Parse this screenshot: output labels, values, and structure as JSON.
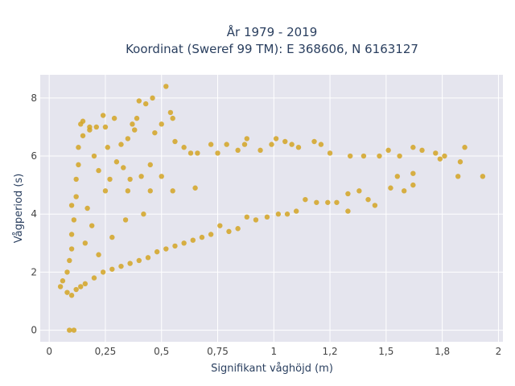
{
  "chart_data": {
    "type": "scatter",
    "title": "År 1979 - 2019",
    "subtitle": "Koordinat (Sweref 99 TM): E 368606, N 6163127",
    "xlabel": "Signifikant våghöjd (m)",
    "ylabel": "Vågperiod (s)",
    "xlim": [
      -0.04,
      2.02
    ],
    "ylim": [
      -0.4,
      8.8
    ],
    "x_ticks": [
      0,
      0.25,
      0.5,
      0.75,
      1,
      1.25,
      1.5,
      1.75,
      2
    ],
    "x_tick_labels": [
      "0",
      "0,25",
      "0,5",
      "0,75",
      "1",
      "1,2",
      "1,5",
      "1,8",
      "2"
    ],
    "y_ticks": [
      0,
      2,
      4,
      6,
      8
    ],
    "y_tick_labels": [
      "0",
      "2",
      "4",
      "6",
      "8"
    ],
    "grid": true,
    "legend": "none",
    "marker_color": "#d4a423",
    "plot_background": "#e5e5ee",
    "series": [
      {
        "points": [
          [
            0.09,
            0.0
          ],
          [
            0.11,
            0.0
          ],
          [
            0.05,
            1.5
          ],
          [
            0.06,
            1.7
          ],
          [
            0.08,
            1.3
          ],
          [
            0.1,
            1.2
          ],
          [
            0.12,
            1.4
          ],
          [
            0.08,
            2.0
          ],
          [
            0.09,
            2.4
          ],
          [
            0.1,
            2.8
          ],
          [
            0.1,
            3.3
          ],
          [
            0.11,
            3.8
          ],
          [
            0.1,
            4.3
          ],
          [
            0.12,
            4.6
          ],
          [
            0.12,
            5.2
          ],
          [
            0.13,
            5.7
          ],
          [
            0.13,
            6.3
          ],
          [
            0.15,
            6.7
          ],
          [
            0.15,
            7.2
          ],
          [
            0.14,
            7.1
          ],
          [
            0.18,
            6.9
          ],
          [
            0.18,
            7.0
          ],
          [
            0.21,
            7.0
          ],
          [
            0.24,
            7.4
          ],
          [
            0.25,
            7.0
          ],
          [
            0.29,
            7.3
          ],
          [
            0.37,
            7.1
          ],
          [
            0.35,
            6.6
          ],
          [
            0.38,
            6.9
          ],
          [
            0.39,
            7.3
          ],
          [
            0.4,
            7.9
          ],
          [
            0.43,
            7.8
          ],
          [
            0.46,
            8.0
          ],
          [
            0.52,
            8.4
          ],
          [
            0.5,
            7.1
          ],
          [
            0.55,
            7.3
          ],
          [
            0.54,
            7.5
          ],
          [
            0.47,
            6.8
          ],
          [
            0.56,
            6.5
          ],
          [
            0.6,
            6.3
          ],
          [
            0.63,
            6.1
          ],
          [
            0.66,
            6.1
          ],
          [
            0.72,
            6.4
          ],
          [
            0.75,
            6.1
          ],
          [
            0.79,
            6.4
          ],
          [
            0.84,
            6.2
          ],
          [
            0.87,
            6.4
          ],
          [
            0.88,
            6.6
          ],
          [
            0.94,
            6.2
          ],
          [
            0.99,
            6.4
          ],
          [
            1.01,
            6.6
          ],
          [
            1.05,
            6.5
          ],
          [
            1.08,
            6.4
          ],
          [
            1.11,
            6.3
          ],
          [
            1.18,
            6.5
          ],
          [
            1.21,
            6.4
          ],
          [
            1.25,
            6.1
          ],
          [
            1.34,
            6.0
          ],
          [
            1.4,
            6.0
          ],
          [
            1.47,
            6.0
          ],
          [
            1.51,
            6.2
          ],
          [
            1.56,
            6.0
          ],
          [
            1.62,
            6.3
          ],
          [
            1.66,
            6.2
          ],
          [
            1.72,
            6.1
          ],
          [
            1.85,
            6.3
          ],
          [
            1.74,
            5.9
          ],
          [
            1.76,
            6.0
          ],
          [
            1.83,
            5.8
          ],
          [
            1.82,
            5.3
          ],
          [
            1.93,
            5.3
          ],
          [
            1.62,
            5.4
          ],
          [
            1.62,
            5.0
          ],
          [
            1.58,
            4.8
          ],
          [
            1.55,
            5.3
          ],
          [
            1.52,
            4.9
          ],
          [
            1.45,
            4.3
          ],
          [
            1.42,
            4.5
          ],
          [
            1.38,
            4.8
          ],
          [
            1.33,
            4.7
          ],
          [
            1.33,
            4.1
          ],
          [
            1.28,
            4.4
          ],
          [
            1.24,
            4.4
          ],
          [
            1.19,
            4.4
          ],
          [
            1.14,
            4.5
          ],
          [
            1.1,
            4.1
          ],
          [
            1.06,
            4.0
          ],
          [
            1.02,
            4.0
          ],
          [
            0.97,
            3.9
          ],
          [
            0.92,
            3.8
          ],
          [
            0.88,
            3.9
          ],
          [
            0.84,
            3.5
          ],
          [
            0.8,
            3.4
          ],
          [
            0.76,
            3.6
          ],
          [
            0.72,
            3.3
          ],
          [
            0.68,
            3.2
          ],
          [
            0.64,
            3.1
          ],
          [
            0.6,
            3.0
          ],
          [
            0.56,
            2.9
          ],
          [
            0.52,
            2.8
          ],
          [
            0.48,
            2.7
          ],
          [
            0.44,
            2.5
          ],
          [
            0.4,
            2.4
          ],
          [
            0.36,
            2.3
          ],
          [
            0.32,
            2.2
          ],
          [
            0.28,
            2.1
          ],
          [
            0.24,
            2.0
          ],
          [
            0.2,
            1.8
          ],
          [
            0.16,
            1.6
          ],
          [
            0.14,
            1.5
          ],
          [
            0.3,
            5.8
          ],
          [
            0.22,
            5.5
          ],
          [
            0.27,
            5.2
          ],
          [
            0.33,
            5.6
          ],
          [
            0.36,
            5.2
          ],
          [
            0.41,
            5.3
          ],
          [
            0.45,
            5.7
          ],
          [
            0.5,
            5.3
          ],
          [
            0.2,
            6.0
          ],
          [
            0.26,
            6.3
          ],
          [
            0.32,
            6.4
          ],
          [
            0.25,
            4.8
          ],
          [
            0.35,
            4.8
          ],
          [
            0.45,
            4.8
          ],
          [
            0.55,
            4.8
          ],
          [
            0.65,
            4.9
          ],
          [
            0.17,
            4.2
          ],
          [
            0.19,
            3.6
          ],
          [
            0.16,
            3.0
          ],
          [
            0.22,
            2.6
          ],
          [
            0.28,
            3.2
          ],
          [
            0.34,
            3.8
          ],
          [
            0.42,
            4.0
          ]
        ]
      }
    ]
  }
}
